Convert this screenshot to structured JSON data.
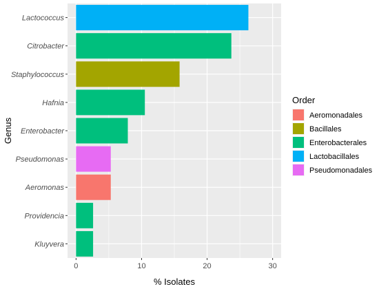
{
  "chart_data": {
    "type": "bar",
    "orientation": "horizontal",
    "xlabel": "% Isolates",
    "ylabel": "Genus",
    "xlim": [
      -1.3,
      31.3
    ],
    "x_ticks": [
      0,
      10,
      20,
      30
    ],
    "grid": true,
    "legend_position": "right",
    "legend_title": "Order",
    "categories": [
      "Lactococcus",
      "Citrobacter",
      "Staphylococcus",
      "Hafnia",
      "Enterobacter",
      "Pseudomonas",
      "Aeromonas",
      "Providencia",
      "Kluyvera"
    ],
    "values": [
      26.3,
      23.7,
      15.8,
      10.5,
      7.9,
      5.3,
      5.3,
      2.6,
      2.6
    ],
    "orders": [
      "Lactobacillales",
      "Enterobacterales",
      "Bacillales",
      "Enterobacterales",
      "Enterobacterales",
      "Pseudomonadales",
      "Aeromonadales",
      "Enterobacterales",
      "Enterobacterales"
    ],
    "legend": [
      {
        "name": "Aeromonadales",
        "color": "#F8766D"
      },
      {
        "name": "Bacillales",
        "color": "#A3A500"
      },
      {
        "name": "Enterobacterales",
        "color": "#00BF7D"
      },
      {
        "name": "Lactobacillales",
        "color": "#00B0F6"
      },
      {
        "name": "Pseudomonadales",
        "color": "#E76BF3"
      }
    ],
    "panel_background": "#EBEBEB",
    "grid_color": "#FFFFFF"
  }
}
